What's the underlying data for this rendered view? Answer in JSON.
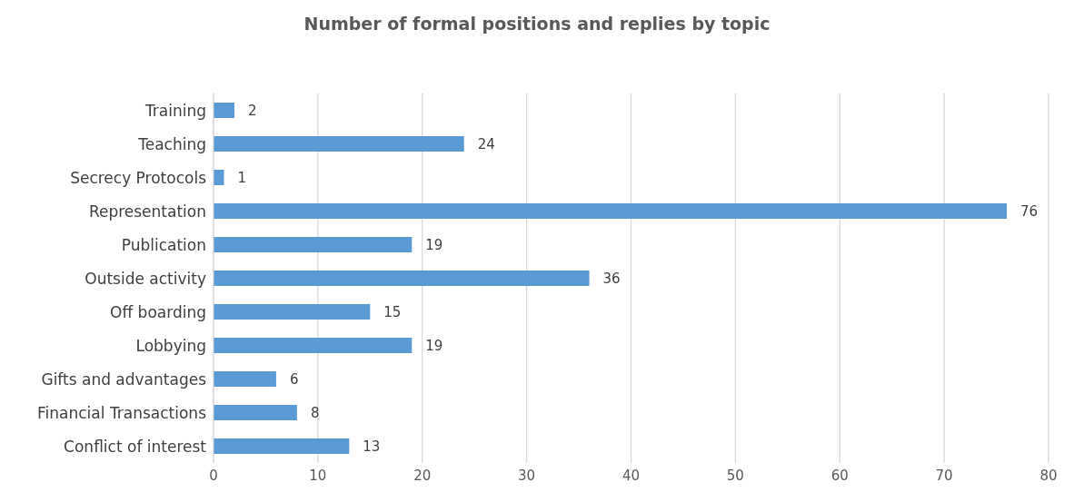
{
  "chart_data": {
    "type": "bar",
    "orientation": "horizontal",
    "title": "Number of formal positions and replies by topic",
    "categories": [
      "Training",
      "Teaching",
      "Secrecy Protocols",
      "Representation",
      "Publication",
      "Outside activity",
      "Off boarding",
      "Lobbying",
      "Gifts and advantages",
      "Financial Transactions",
      "Conflict of interest"
    ],
    "values": [
      2,
      24,
      1,
      76,
      19,
      36,
      15,
      19,
      6,
      8,
      13
    ],
    "color": "#5b9bd5",
    "xlim": [
      0,
      80
    ],
    "xticks": [
      0,
      10,
      20,
      30,
      40,
      50,
      60,
      70,
      80
    ],
    "grid": "x",
    "data_labels": true
  }
}
